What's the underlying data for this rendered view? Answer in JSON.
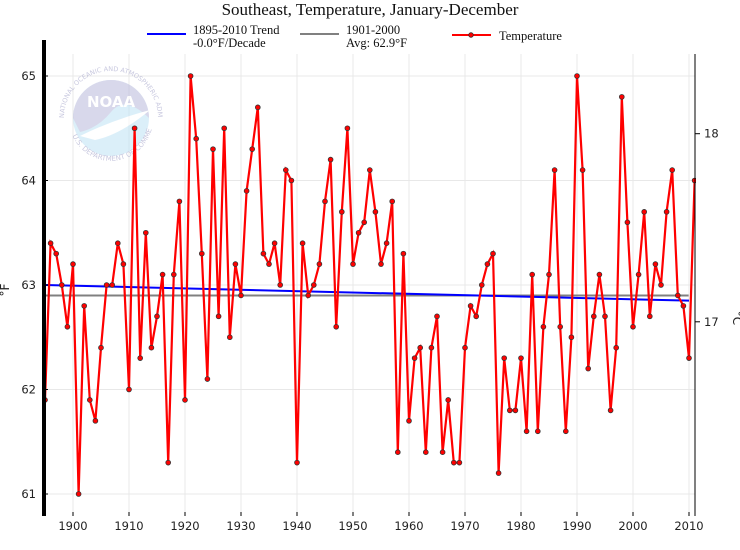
{
  "chart_data": {
    "type": "line",
    "title": "Southeast, Temperature, January-December",
    "ylabel": "°F",
    "ylabel_right": "°C",
    "ylim": [
      61,
      65
    ],
    "xlim": [
      1895,
      2011
    ],
    "yticks": [
      "61",
      "62",
      "63",
      "64",
      "65"
    ],
    "yticks_right": [
      "17",
      "18"
    ],
    "xticks": [
      "1900",
      "1910",
      "1920",
      "1930",
      "1940",
      "1950",
      "1960",
      "1970",
      "1980",
      "1990",
      "2000",
      "2010"
    ],
    "grid": true,
    "legend_position": "top",
    "legend": {
      "trend_line1": "1895-2010 Trend",
      "trend_line2": "-0.0°F/Decade",
      "avg_line1": "1901-2000",
      "avg_line2": "Avg: 62.9°F",
      "temp": "Temperature"
    },
    "colors": {
      "temperature": "#ff0000",
      "trend": "#0000ff",
      "average": "#808080"
    },
    "average_value": 62.9,
    "trend": {
      "start_year": 1895,
      "start_value": 63.0,
      "end_year": 2010,
      "end_value": 62.85
    },
    "series": [
      {
        "name": "Temperature",
        "start_year": 1895,
        "values": [
          61.9,
          63.4,
          63.3,
          63.0,
          62.6,
          63.2,
          61.0,
          62.8,
          61.9,
          61.7,
          62.4,
          63.0,
          63.0,
          63.4,
          63.2,
          62.0,
          64.5,
          62.3,
          63.5,
          62.4,
          62.7,
          63.1,
          61.3,
          63.1,
          63.8,
          61.9,
          65.0,
          64.4,
          63.3,
          62.1,
          64.3,
          62.7,
          64.5,
          62.5,
          63.2,
          62.9,
          63.9,
          64.3,
          64.7,
          63.3,
          63.2,
          63.4,
          63.0,
          64.1,
          64.0,
          61.3,
          63.4,
          62.9,
          63.0,
          63.2,
          63.8,
          64.2,
          62.6,
          63.7,
          64.5,
          63.2,
          63.5,
          63.6,
          64.1,
          63.7,
          63.2,
          63.4,
          63.8,
          61.4,
          63.3,
          61.7,
          62.3,
          62.4,
          61.4,
          62.4,
          62.7,
          61.4,
          61.9,
          61.3,
          61.3,
          62.4,
          62.8,
          62.7,
          63.0,
          63.2,
          63.3,
          61.2,
          62.3,
          61.8,
          61.8,
          62.3,
          61.6,
          63.1,
          61.6,
          62.6,
          63.1,
          64.1,
          62.6,
          61.6,
          62.5,
          65.0,
          64.1,
          62.2,
          62.7,
          63.1,
          62.7,
          61.8,
          62.4,
          64.8,
          63.6,
          62.6,
          63.1,
          63.7,
          62.7,
          63.2,
          63.0,
          63.7,
          64.1,
          62.9,
          62.8,
          62.3,
          64.0
        ]
      }
    ]
  },
  "logo": {
    "center_text": "NOAA",
    "ring_top": "NATIONAL OCEANIC AND ATMOSPHERIC ADMINISTRATION",
    "ring_bottom": "U.S. DEPARTMENT OF COMMERCE"
  }
}
